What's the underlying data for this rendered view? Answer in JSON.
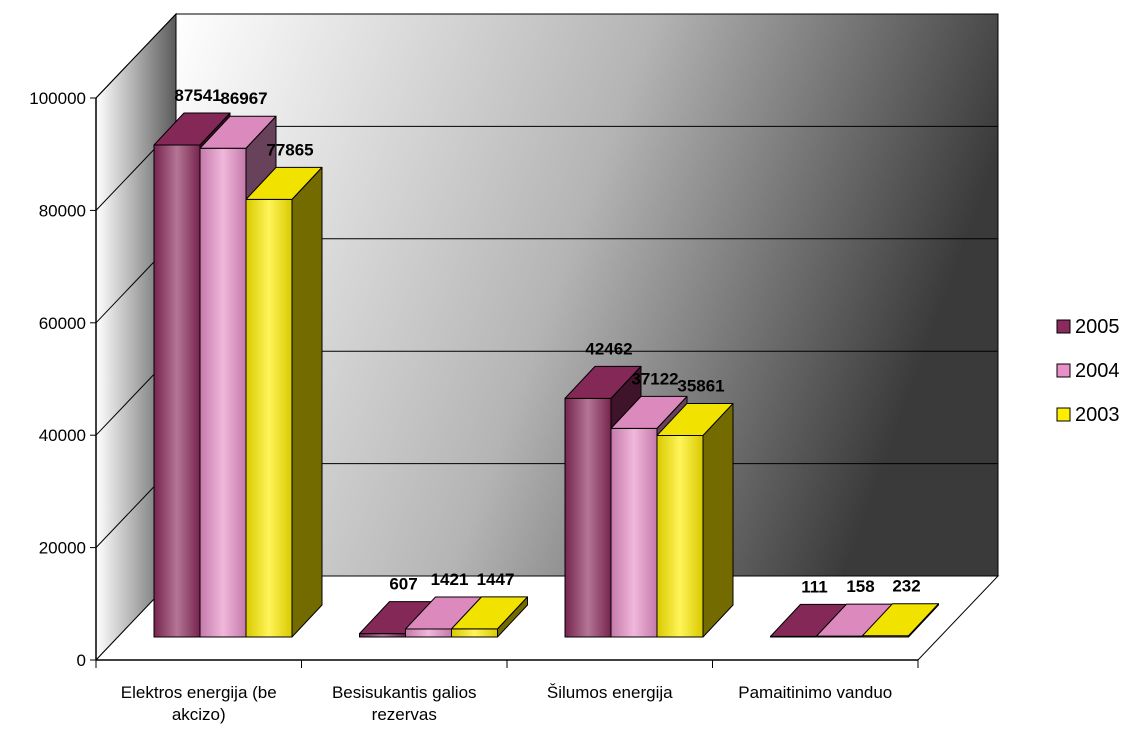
{
  "chart_data": {
    "type": "bar",
    "title": "",
    "xlabel": "",
    "ylabel": "",
    "ylim": [
      0,
      100000
    ],
    "yticks": [
      0,
      20000,
      40000,
      60000,
      80000,
      100000
    ],
    "grid": true,
    "legend_position": "right",
    "categories": [
      [
        "Elektros energija (be",
        "akcizo)"
      ],
      [
        "Besisukantis galios",
        "rezervas"
      ],
      [
        "Šilumos energija"
      ],
      [
        "Pamaitinimo vanduo"
      ]
    ],
    "series": [
      {
        "name": "2005",
        "color": "#8b2a5c",
        "values": [
          87541,
          607,
          42462,
          111
        ]
      },
      {
        "name": "2004",
        "color": "#e890c8",
        "values": [
          86967,
          1421,
          37122,
          158
        ]
      },
      {
        "name": "2003",
        "color": "#ffee00",
        "values": [
          77865,
          1447,
          35861,
          232
        ]
      }
    ]
  }
}
